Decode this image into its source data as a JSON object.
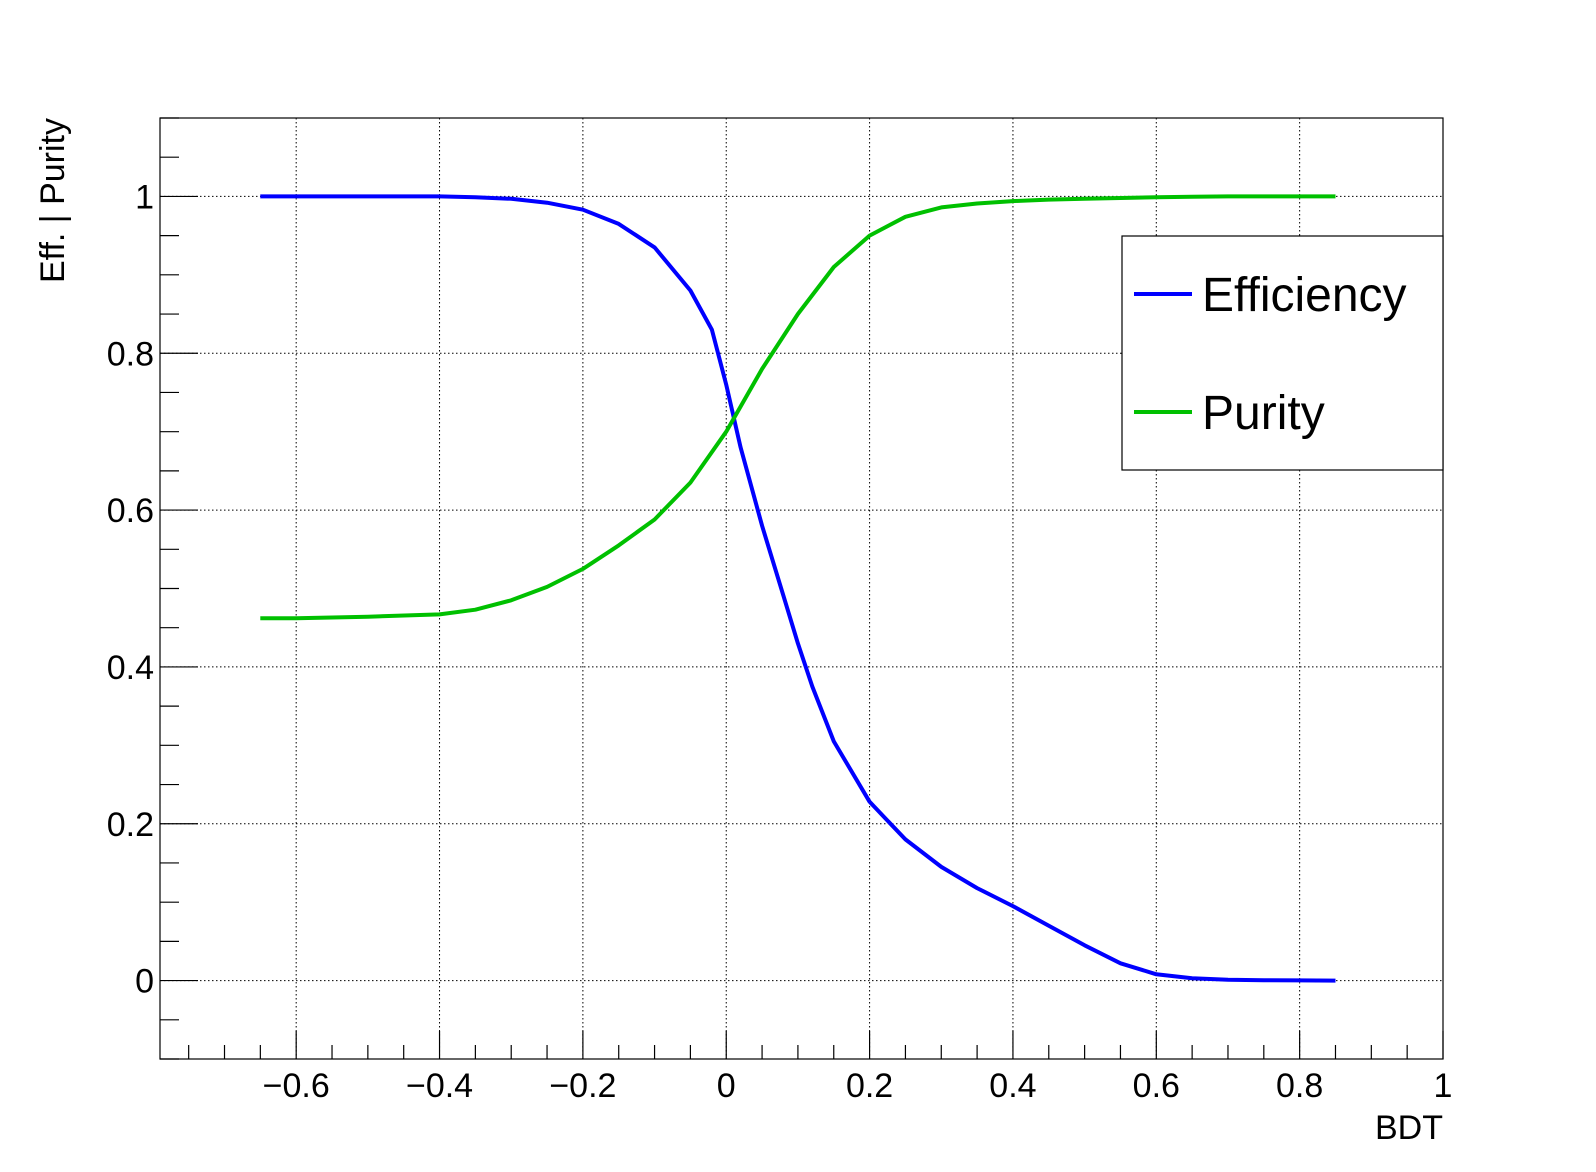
{
  "chart_data": {
    "type": "line",
    "title": "",
    "xlabel": "BDT",
    "ylabel": "Eff. | Purity",
    "xlim": [
      -0.79,
      1.0
    ],
    "ylim": [
      -0.1,
      1.1
    ],
    "grid": true,
    "legend_position": "top-right",
    "x_ticks": [
      -0.6,
      -0.4,
      -0.2,
      0,
      0.2,
      0.4,
      0.6,
      0.8,
      1
    ],
    "x_tick_labels": [
      "−0.6",
      "−0.4",
      "−0.2",
      "0",
      "0.2",
      "0.4",
      "0.6",
      "0.8",
      "1"
    ],
    "y_ticks": [
      0,
      0.2,
      0.4,
      0.6,
      0.8,
      1
    ],
    "y_tick_labels": [
      "0",
      "0.2",
      "0.4",
      "0.6",
      "0.8",
      "1"
    ],
    "series": [
      {
        "name": "Efficiency",
        "color": "#0000ff",
        "x": [
          -0.65,
          -0.6,
          -0.5,
          -0.4,
          -0.35,
          -0.3,
          -0.25,
          -0.2,
          -0.15,
          -0.1,
          -0.05,
          -0.02,
          0,
          0.02,
          0.05,
          0.08,
          0.1,
          0.12,
          0.15,
          0.2,
          0.25,
          0.3,
          0.35,
          0.4,
          0.45,
          0.5,
          0.55,
          0.6,
          0.65,
          0.7,
          0.75,
          0.8,
          0.85
        ],
        "y": [
          1.0,
          1.0,
          1.0,
          1.0,
          0.999,
          0.997,
          0.992,
          0.983,
          0.965,
          0.935,
          0.88,
          0.83,
          0.76,
          0.68,
          0.58,
          0.49,
          0.43,
          0.375,
          0.305,
          0.228,
          0.18,
          0.145,
          0.118,
          0.095,
          0.07,
          0.045,
          0.022,
          0.008,
          0.003,
          0.001,
          0.0005,
          0.0002,
          0.0
        ]
      },
      {
        "name": "Purity",
        "color": "#00c000",
        "x": [
          -0.65,
          -0.6,
          -0.5,
          -0.4,
          -0.35,
          -0.3,
          -0.25,
          -0.2,
          -0.15,
          -0.1,
          -0.05,
          0,
          0.05,
          0.1,
          0.15,
          0.2,
          0.25,
          0.3,
          0.35,
          0.4,
          0.45,
          0.5,
          0.55,
          0.6,
          0.65,
          0.7,
          0.75,
          0.8,
          0.85
        ],
        "y": [
          0.462,
          0.462,
          0.464,
          0.467,
          0.473,
          0.485,
          0.502,
          0.525,
          0.555,
          0.588,
          0.635,
          0.7,
          0.78,
          0.85,
          0.91,
          0.95,
          0.974,
          0.986,
          0.991,
          0.994,
          0.996,
          0.997,
          0.998,
          0.999,
          0.9995,
          1.0,
          1.0,
          1.0,
          1.0
        ]
      }
    ]
  }
}
